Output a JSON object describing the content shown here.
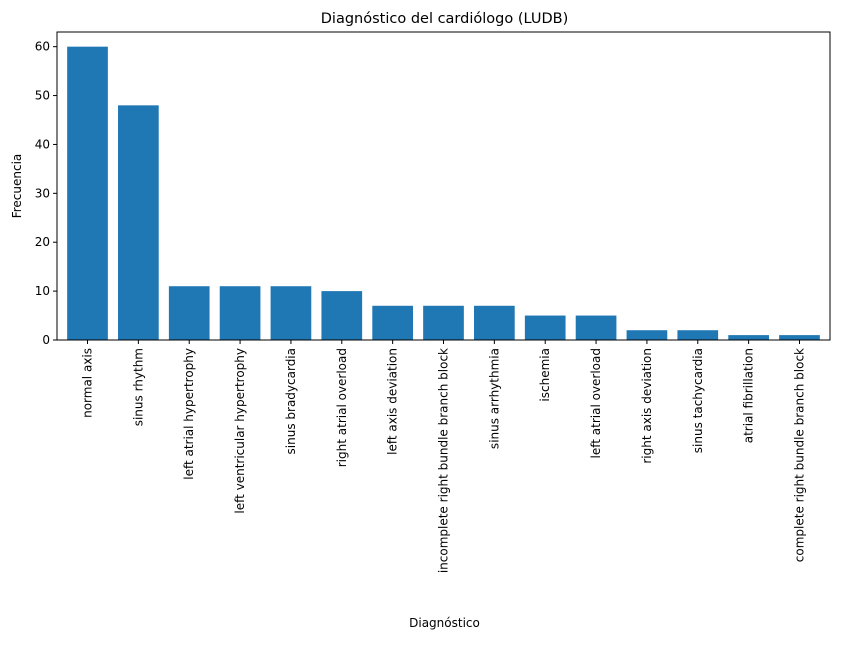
{
  "chart_data": {
    "type": "bar",
    "title": "Diagnóstico del cardiólogo (LUDB)",
    "xlabel": "Diagnóstico",
    "ylabel": "Frecuencia",
    "ylim": [
      0,
      63
    ],
    "yticks": [
      0,
      10,
      20,
      30,
      40,
      50,
      60
    ],
    "grid": false,
    "bar_color": "#1f77b4",
    "categories": [
      "normal axis",
      "sinus rhythm",
      "left atrial hypertrophy",
      "left ventricular hypertrophy",
      "sinus bradycardia",
      "right atrial overload",
      "left axis deviation",
      "incomplete right bundle branch block",
      "sinus arrhythmia",
      "ischemia",
      "left atrial overload",
      "right axis deviation",
      "sinus tachycardia",
      "atrial fibrillation",
      "complete right bundle branch block"
    ],
    "values": [
      60,
      48,
      11,
      11,
      11,
      10,
      7,
      7,
      7,
      5,
      5,
      2,
      2,
      1,
      1
    ]
  }
}
